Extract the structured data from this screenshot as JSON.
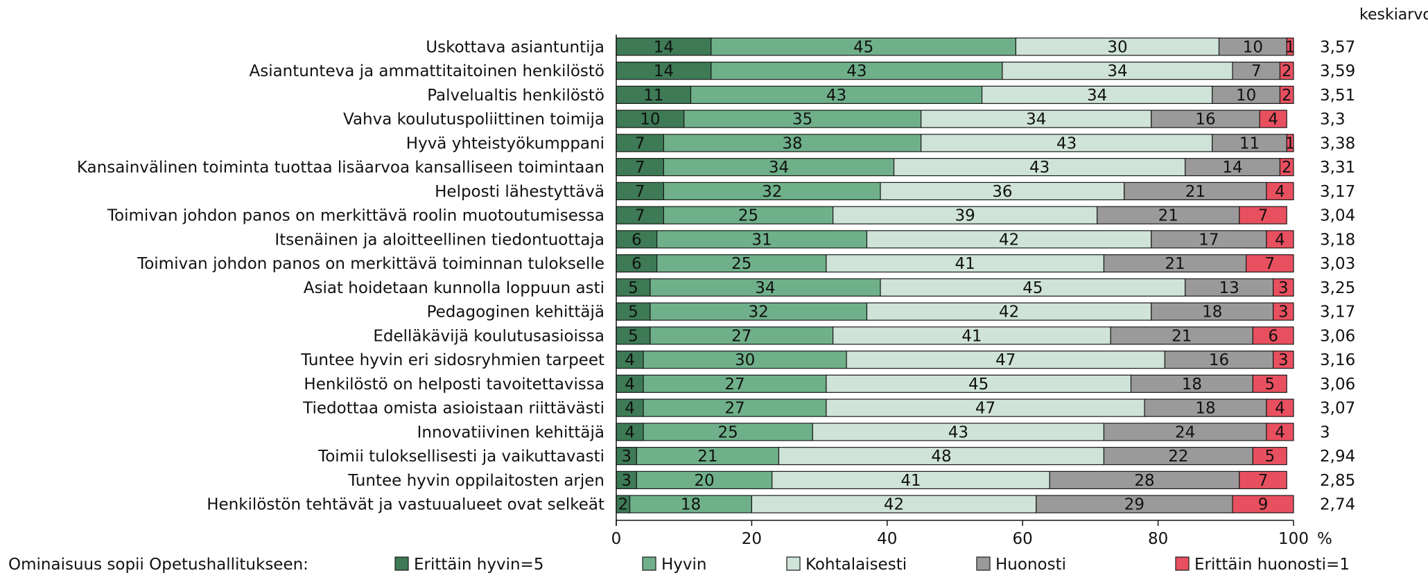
{
  "chart_data": {
    "type": "bar",
    "orientation": "horizontal",
    "stacked": true,
    "categories": [
      "Uskottava asiantuntija",
      "Asiantunteva ja ammattitaitoinen henkilöstö",
      "Palvelualtis henkilöstö",
      "Vahva koulutuspoliittinen toimija",
      "Hyvä yhteistyökumppani",
      "Kansainvälinen toiminta tuottaa lisäarvoa kansalliseen toimintaan",
      "Helposti lähestyttävä",
      "Toimivan johdon panos on merkittävä roolin muotoutumisessa",
      "Itsenäinen ja aloitteellinen tiedontuottaja",
      "Toimivan johdon panos on merkittävä toiminnan tulokselle",
      "Asiat hoidetaan kunnolla loppuun asti",
      "Pedagoginen kehittäjä",
      "Edelläkävijä koulutusasioissa",
      "Tuntee hyvin eri sidosryhmien tarpeet",
      "Henkilöstö on helposti tavoitettavissa",
      "Tiedottaa omista asioistaan riittävästi",
      "Innovatiivinen kehittäjä",
      "Toimii tuloksellisesti ja vaikuttavasti",
      "Tuntee hyvin oppilaitosten arjen",
      "Henkilöstön tehtävät ja vastuualueet ovat selkeät"
    ],
    "series": [
      {
        "name": "Erittäin hyvin=5",
        "color": "#3d7a55",
        "label_color": "#111111",
        "values": [
          14,
          14,
          11,
          10,
          7,
          7,
          7,
          7,
          6,
          6,
          5,
          5,
          5,
          4,
          4,
          4,
          4,
          3,
          3,
          2
        ]
      },
      {
        "name": "Hyvin",
        "color": "#6fb08a",
        "label_color": "#111111",
        "values": [
          45,
          43,
          43,
          35,
          38,
          34,
          32,
          25,
          31,
          25,
          34,
          32,
          27,
          30,
          27,
          27,
          25,
          21,
          20,
          18
        ]
      },
      {
        "name": "Kohtalaisesti",
        "color": "#cfe3d8",
        "label_color": "#111111",
        "values": [
          30,
          34,
          34,
          34,
          43,
          43,
          36,
          39,
          42,
          41,
          45,
          42,
          41,
          47,
          45,
          47,
          43,
          48,
          41,
          42
        ]
      },
      {
        "name": "Huonosti",
        "color": "#9a9a9a",
        "label_color": "#111111",
        "values": [
          10,
          7,
          10,
          16,
          11,
          14,
          21,
          21,
          17,
          21,
          13,
          18,
          21,
          16,
          18,
          18,
          24,
          22,
          28,
          29
        ]
      },
      {
        "name": "Erittäin huonosti=1",
        "color": "#e8505f",
        "label_color": "#111111",
        "values": [
          1,
          2,
          2,
          4,
          1,
          2,
          4,
          7,
          4,
          7,
          3,
          3,
          6,
          3,
          5,
          4,
          4,
          5,
          7,
          9
        ]
      }
    ],
    "averages_header": "keskiarvo",
    "averages": [
      "3,57",
      "3,59",
      "3,51",
      "3,3",
      "3,38",
      "3,31",
      "3,17",
      "3,04",
      "3,18",
      "3,03",
      "3,25",
      "3,17",
      "3,06",
      "3,16",
      "3,06",
      "3,07",
      "3",
      "2,94",
      "2,85",
      "2,74"
    ],
    "xlim": [
      0,
      100
    ],
    "xticks": [
      0,
      20,
      40,
      60,
      80,
      100
    ],
    "xunit": "%",
    "legend_title": "Ominaisuus sopii Opetushallitukseen:",
    "legend_position": "bottom",
    "grid": false
  }
}
